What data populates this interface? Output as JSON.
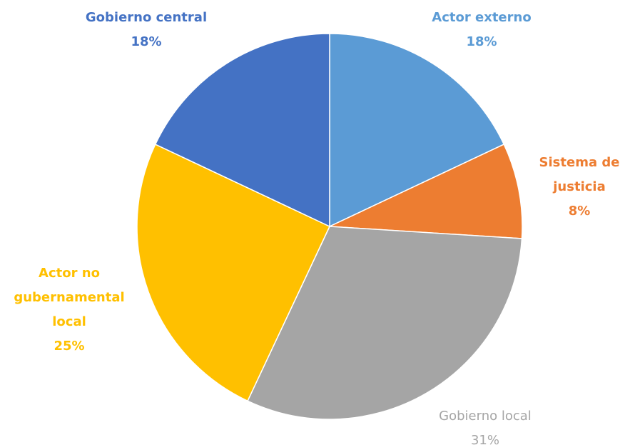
{
  "chart_data": {
    "type": "pie",
    "categories": [
      "Actor externo",
      "Sistema de justicia",
      "Gobierno local",
      "Actor no gubernamental local",
      "Gobierno central"
    ],
    "values": [
      18,
      8,
      31,
      25,
      18
    ],
    "value_labels": [
      "18%",
      "8%",
      "31%",
      "25%",
      "18%"
    ],
    "colors": [
      "#5b9bd5",
      "#ed7d31",
      "#a5a5a5",
      "#ffc000",
      "#4472c4"
    ]
  }
}
